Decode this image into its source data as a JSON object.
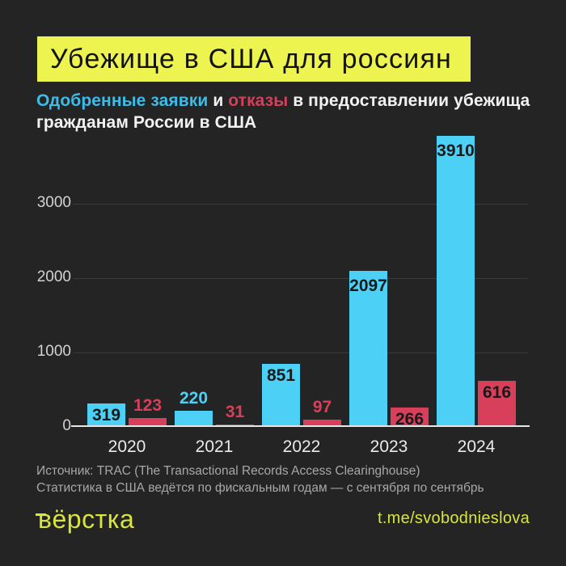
{
  "page": {
    "background": "#242424"
  },
  "header": {
    "title": "Убежище в США для россиян",
    "highlight_color": "#edf34f",
    "title_text_color": "#121212"
  },
  "subtitle": {
    "approved": "Одобренные заявки",
    "conj": " и ",
    "refused": "отказы",
    "rest_line1": " в предоставлении убежища",
    "line2": "гражданам России в США",
    "approved_color": "#3cbce9",
    "refused_color": "#d83f5b"
  },
  "chart_data": {
    "type": "bar",
    "title": "Одобренные заявки и отказы в предоставлении убежища гражданам России в США",
    "categories": [
      "2020",
      "2021",
      "2022",
      "2023",
      "2024"
    ],
    "series": [
      {
        "name": "Одобренные заявки",
        "color": "#4dd0f5",
        "values": [
          319,
          220,
          851,
          2097,
          3910
        ],
        "label_placement": [
          "inside",
          "above",
          "inside",
          "inside",
          "inside"
        ]
      },
      {
        "name": "Отказы",
        "color": "#d83f5b",
        "values": [
          123,
          31,
          97,
          266,
          616
        ],
        "label_placement": [
          "above",
          "above",
          "above",
          "inside",
          "inside"
        ]
      }
    ],
    "xlabel": "",
    "ylabel": "",
    "yticks": [
      0,
      1000,
      2000,
      3000
    ],
    "ylim": [
      0,
      3950
    ],
    "grid": true,
    "legend_position": "none (colors explained in subtitle)",
    "gridline_color": "#3b3b3b",
    "axis_line_color": "#e6e6e6",
    "tick_label_color": "#d2d2d2",
    "xtick_label_color": "#eaeaea",
    "value_label_inside_color": "#191919"
  },
  "footnote": {
    "line1": "Источник: TRAC (The Transactional Records Access Clearinghouse)",
    "line2": "Статистика в США ведётся по фискальным годам — с сентября по сентябрь"
  },
  "footer": {
    "logo": "вёрстка",
    "link": "t.me/svobodnieslova",
    "accent_color": "#d9e53c"
  }
}
